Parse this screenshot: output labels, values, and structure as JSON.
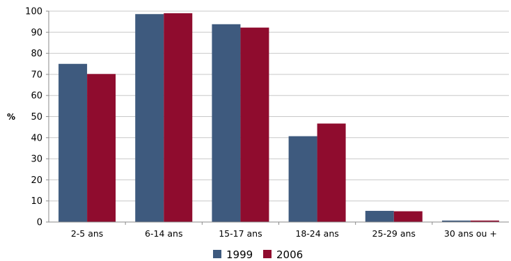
{
  "chart_data": {
    "type": "bar",
    "title": "",
    "xlabel": "",
    "ylabel": "%",
    "ylim": [
      0,
      100
    ],
    "yticks": [
      0,
      10,
      20,
      30,
      40,
      50,
      60,
      70,
      80,
      90,
      100
    ],
    "grid": true,
    "legend_position": "bottom",
    "categories": [
      "2-5 ans",
      "6-14 ans",
      "15-17 ans",
      "18-24 ans",
      "25-29 ans",
      "30 ans ou +"
    ],
    "series": [
      {
        "name": "1999",
        "color": "#3e5a7e",
        "values": [
          75,
          98.6,
          93.8,
          40.7,
          5.3,
          0.7
        ]
      },
      {
        "name": "2006",
        "color": "#8f0c2e",
        "values": [
          70.2,
          99,
          92.2,
          46.7,
          5.1,
          0.7
        ]
      }
    ]
  }
}
